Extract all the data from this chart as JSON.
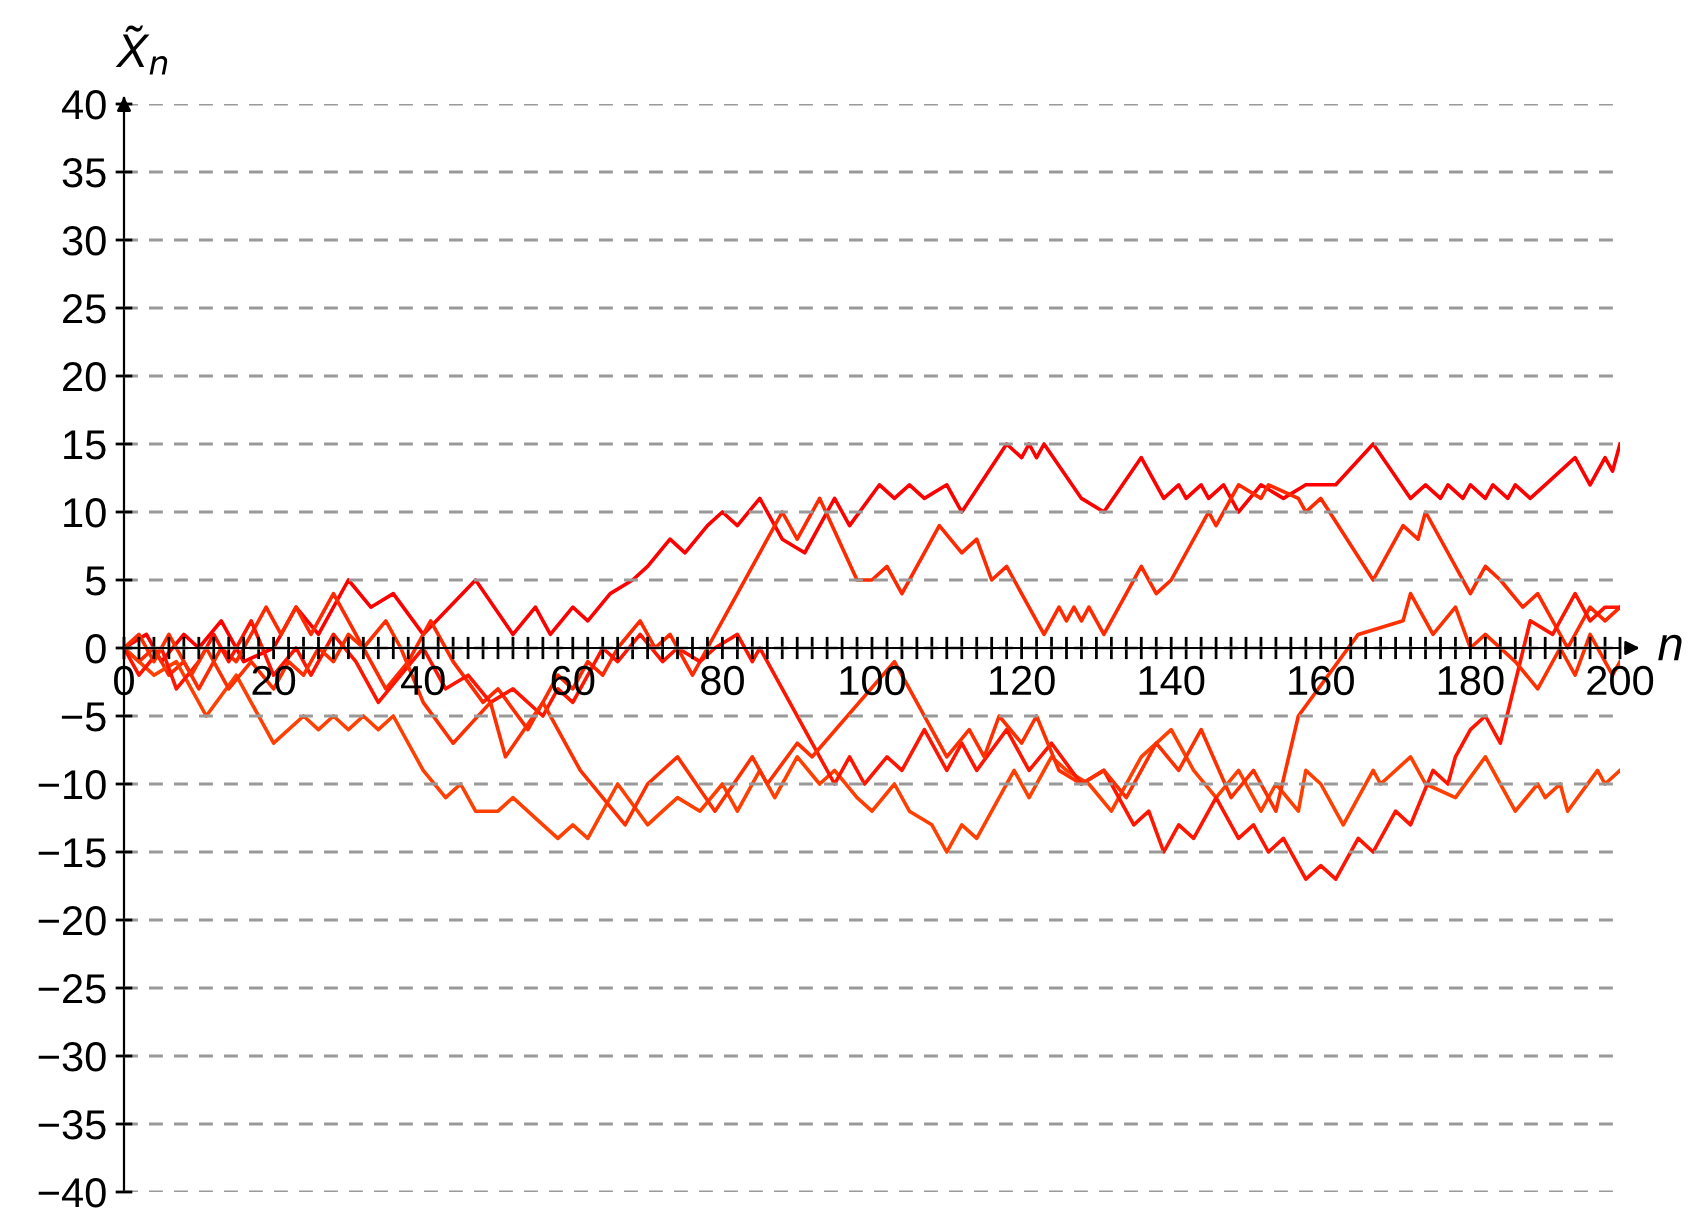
{
  "chart_data": {
    "type": "line",
    "xlabel": "n",
    "ylabel": "X̃$_{n}$",
    "xlim": [
      0,
      200
    ],
    "ylim": [
      -40,
      40
    ],
    "xticks": [
      0,
      {
        "value": 2,
        "label": null
      },
      {
        "value": 4,
        "label": null
      },
      {
        "value": 6,
        "label": null
      },
      {
        "value": 8,
        "label": null
      },
      {
        "value": 10,
        "label": null
      },
      {
        "value": 12,
        "label": null
      },
      {
        "value": 14,
        "label": null
      },
      {
        "value": 16,
        "label": null
      },
      {
        "value": 18,
        "label": null
      },
      20,
      {
        "value": 22,
        "label": null
      },
      {
        "value": 24,
        "label": null
      },
      {
        "value": 26,
        "label": null
      },
      {
        "value": 28,
        "label": null
      },
      {
        "value": 30,
        "label": null
      },
      {
        "value": 32,
        "label": null
      },
      {
        "value": 34,
        "label": null
      },
      {
        "value": 36,
        "label": null
      },
      {
        "value": 38,
        "label": null
      },
      40,
      {
        "value": 42,
        "label": null
      },
      {
        "value": 44,
        "label": null
      },
      {
        "value": 46,
        "label": null
      },
      {
        "value": 48,
        "label": null
      },
      {
        "value": 50,
        "label": null
      },
      {
        "value": 52,
        "label": null
      },
      {
        "value": 54,
        "label": null
      },
      {
        "value": 56,
        "label": null
      },
      {
        "value": 58,
        "label": null
      },
      60,
      {
        "value": 62,
        "label": null
      },
      {
        "value": 64,
        "label": null
      },
      {
        "value": 66,
        "label": null
      },
      {
        "value": 68,
        "label": null
      },
      {
        "value": 70,
        "label": null
      },
      {
        "value": 72,
        "label": null
      },
      {
        "value": 74,
        "label": null
      },
      {
        "value": 76,
        "label": null
      },
      {
        "value": 78,
        "label": null
      },
      80,
      {
        "value": 82,
        "label": null
      },
      {
        "value": 84,
        "label": null
      },
      {
        "value": 86,
        "label": null
      },
      {
        "value": 88,
        "label": null
      },
      {
        "value": 90,
        "label": null
      },
      {
        "value": 92,
        "label": null
      },
      {
        "value": 94,
        "label": null
      },
      {
        "value": 96,
        "label": null
      },
      {
        "value": 98,
        "label": null
      },
      100,
      {
        "value": 102,
        "label": null
      },
      {
        "value": 104,
        "label": null
      },
      {
        "value": 106,
        "label": null
      },
      {
        "value": 108,
        "label": null
      },
      {
        "value": 110,
        "label": null
      },
      {
        "value": 112,
        "label": null
      },
      {
        "value": 114,
        "label": null
      },
      {
        "value": 116,
        "label": null
      },
      {
        "value": 118,
        "label": null
      },
      120,
      {
        "value": 122,
        "label": null
      },
      {
        "value": 124,
        "label": null
      },
      {
        "value": 126,
        "label": null
      },
      {
        "value": 128,
        "label": null
      },
      {
        "value": 130,
        "label": null
      },
      {
        "value": 132,
        "label": null
      },
      {
        "value": 134,
        "label": null
      },
      {
        "value": 136,
        "label": null
      },
      {
        "value": 138,
        "label": null
      },
      140,
      {
        "value": 142,
        "label": null
      },
      {
        "value": 144,
        "label": null
      },
      {
        "value": 146,
        "label": null
      },
      {
        "value": 148,
        "label": null
      },
      {
        "value": 150,
        "label": null
      },
      {
        "value": 152,
        "label": null
      },
      {
        "value": 154,
        "label": null
      },
      {
        "value": 156,
        "label": null
      },
      {
        "value": 158,
        "label": null
      },
      160,
      {
        "value": 162,
        "label": null
      },
      {
        "value": 164,
        "label": null
      },
      {
        "value": 166,
        "label": null
      },
      {
        "value": 168,
        "label": null
      },
      {
        "value": 170,
        "label": null
      },
      {
        "value": 172,
        "label": null
      },
      {
        "value": 174,
        "label": null
      },
      {
        "value": 176,
        "label": null
      },
      {
        "value": 178,
        "label": null
      },
      180,
      {
        "value": 182,
        "label": null
      },
      {
        "value": 184,
        "label": null
      },
      {
        "value": 186,
        "label": null
      },
      {
        "value": 188,
        "label": null
      },
      {
        "value": 190,
        "label": null
      },
      {
        "value": 192,
        "label": null
      },
      {
        "value": 194,
        "label": null
      },
      {
        "value": 196,
        "label": null
      },
      {
        "value": 198,
        "label": null
      },
      200
    ],
    "yticks": [
      {
        "value": -40,
        "label": "−40"
      },
      {
        "value": -35,
        "label": "−35"
      },
      {
        "value": -30,
        "label": "−30"
      },
      {
        "value": -25,
        "label": "−25"
      },
      {
        "value": -20,
        "label": "−20"
      },
      {
        "value": -15,
        "label": "−15"
      },
      {
        "value": -10,
        "label": "−10"
      },
      {
        "value": -5,
        "label": "−5"
      },
      0,
      5,
      10,
      15,
      20,
      25,
      30,
      35,
      40
    ],
    "grid": "y",
    "marker": "none",
    "line_style": "solid",
    "series": [
      {
        "color": "#ff0000",
        "x": [
          0,
          3,
          5,
          8,
          10,
          13,
          16,
          20,
          23,
          26,
          30,
          33,
          36,
          40,
          47,
          52,
          55,
          57,
          60,
          62,
          65,
          68,
          70,
          73,
          75,
          78,
          80,
          82,
          85,
          88,
          91,
          95,
          97,
          101,
          103,
          105,
          107,
          110,
          112,
          118,
          120,
          121,
          122,
          123,
          128,
          131,
          136,
          139,
          141,
          142,
          144,
          145,
          147,
          149,
          152,
          155,
          158,
          162,
          167,
          172,
          174,
          176,
          177,
          179,
          180,
          182,
          183,
          185,
          186,
          188,
          190,
          194,
          196,
          198,
          199,
          200
        ],
        "values": [
          0,
          1,
          -1,
          1,
          0,
          2,
          -1,
          0,
          3,
          1,
          5,
          3,
          4,
          1,
          5,
          1,
          3,
          1,
          3,
          2,
          4,
          5,
          6,
          8,
          7,
          9,
          10,
          9,
          11,
          8,
          7,
          11,
          9,
          12,
          11,
          12,
          11,
          12,
          10,
          15,
          14,
          15,
          14,
          15,
          11,
          10,
          14,
          11,
          12,
          11,
          12,
          11,
          12,
          10,
          12,
          11,
          12,
          12,
          15,
          11,
          12,
          11,
          12,
          11,
          12,
          11,
          12,
          11,
          12,
          11,
          12,
          14,
          12,
          14,
          13,
          15
        ]
      },
      {
        "color": "#ff2a00",
        "x": [
          0,
          2,
          4,
          6,
          8,
          10,
          13,
          15,
          19,
          21,
          23,
          25,
          28,
          31,
          35,
          38,
          41,
          44,
          48,
          50,
          54,
          56,
          58,
          60,
          62,
          64,
          66,
          69,
          71,
          73,
          76,
          78,
          88,
          90,
          93,
          98,
          100,
          102,
          104,
          109,
          112,
          114,
          116,
          118,
          119,
          123,
          125,
          126,
          127,
          128,
          129,
          131,
          136,
          138,
          140,
          145,
          146,
          149,
          152,
          153,
          157,
          158,
          160,
          167,
          171,
          173,
          174,
          180,
          182,
          184,
          187,
          189,
          193,
          196,
          198,
          200
        ],
        "values": [
          0,
          -1,
          0,
          -2,
          -1,
          -3,
          0,
          -1,
          3,
          1,
          3,
          1,
          4,
          1,
          -3,
          -1,
          2,
          -1,
          -4,
          -3,
          -6,
          -4,
          -2,
          -3,
          -1,
          -2,
          0,
          2,
          0,
          1,
          -2,
          0,
          10,
          8,
          11,
          5,
          5,
          6,
          4,
          9,
          7,
          8,
          5,
          6,
          5,
          1,
          3,
          2,
          3,
          2,
          3,
          1,
          6,
          4,
          5,
          10,
          9,
          12,
          11,
          12,
          11,
          10,
          11,
          5,
          9,
          8,
          10,
          4,
          6,
          5,
          3,
          4,
          0,
          3,
          2,
          3
        ]
      },
      {
        "color": "#ff4000",
        "x": [
          0,
          4,
          7,
          11,
          15,
          20,
          24,
          26,
          28,
          30,
          32,
          34,
          36,
          40,
          43,
          45,
          47,
          50,
          52,
          56,
          58,
          60,
          62,
          66,
          70,
          72,
          74,
          77,
          80,
          82,
          85,
          87,
          90,
          93,
          95,
          98,
          100,
          103,
          105,
          108,
          110,
          112,
          114,
          119,
          121,
          124,
          126,
          129,
          132,
          136,
          140,
          143,
          146,
          149,
          152,
          154,
          157,
          158,
          160,
          163,
          167,
          168,
          172,
          174,
          178,
          182,
          186,
          189,
          190,
          192,
          193,
          197,
          198,
          200
        ],
        "values": [
          0,
          -2,
          -1,
          -5,
          -2,
          -7,
          -5,
          -6,
          -5,
          -6,
          -5,
          -6,
          -5,
          -9,
          -11,
          -10,
          -12,
          -12,
          -11,
          -13,
          -14,
          -13,
          -14,
          -10,
          -13,
          -12,
          -11,
          -12,
          -10,
          -12,
          -9,
          -11,
          -8,
          -10,
          -9,
          -11,
          -12,
          -10,
          -12,
          -13,
          -15,
          -13,
          -14,
          -9,
          -11,
          -8,
          -9,
          -10,
          -12,
          -8,
          -6,
          -9,
          -11,
          -9,
          -12,
          -10,
          -12,
          -9,
          -10,
          -13,
          -9,
          -10,
          -8,
          -10,
          -11,
          -8,
          -12,
          -10,
          -11,
          -10,
          -12,
          -9,
          -10,
          -9
        ]
      },
      {
        "color": "#ff1500",
        "x": [
          0,
          2,
          5,
          7,
          10,
          12,
          14,
          17,
          20,
          23,
          25,
          28,
          31,
          34,
          37,
          40,
          43,
          46,
          49,
          52,
          56,
          58,
          60,
          64,
          66,
          69,
          72,
          74,
          77,
          79,
          82,
          84,
          85,
          95,
          97,
          99,
          102,
          104,
          107,
          110,
          112,
          114,
          118,
          121,
          124,
          128,
          131,
          135,
          137,
          139,
          141,
          143,
          146,
          149,
          151,
          153,
          155,
          158,
          160,
          162,
          165,
          167,
          170,
          172,
          175,
          177,
          178,
          180,
          182,
          184,
          188,
          191,
          194,
          196,
          198,
          200
        ],
        "values": [
          0,
          -2,
          0,
          -3,
          -1,
          1,
          -1,
          2,
          -2,
          0,
          -2,
          1,
          -1,
          -4,
          -2,
          0,
          -3,
          -2,
          -4,
          -3,
          -5,
          -3,
          -4,
          0,
          -1,
          1,
          -1,
          0,
          -1,
          0,
          1,
          -1,
          0,
          -10,
          -8,
          -10,
          -8,
          -9,
          -6,
          -9,
          -7,
          -9,
          -6,
          -9,
          -7,
          -10,
          -9,
          -13,
          -12,
          -15,
          -13,
          -14,
          -11,
          -14,
          -13,
          -15,
          -14,
          -17,
          -16,
          -17,
          -14,
          -15,
          -12,
          -13,
          -9,
          -10,
          -8,
          -6,
          -5,
          -7,
          2,
          1,
          4,
          2,
          3,
          3
        ]
      },
      {
        "color": "#ff3000",
        "x": [
          0,
          2,
          4,
          6,
          9,
          11,
          14,
          17,
          20,
          22,
          24,
          26,
          28,
          30,
          32,
          35,
          37,
          40,
          44,
          49,
          51,
          56,
          61,
          67,
          70,
          74,
          79,
          84,
          86,
          90,
          92,
          103,
          110,
          113,
          115,
          117,
          120,
          122,
          125,
          128,
          131,
          134,
          138,
          141,
          144,
          148,
          151,
          154,
          157,
          165,
          171,
          172,
          175,
          178,
          180,
          182,
          186,
          189,
          192,
          194,
          196,
          199,
          200
        ],
        "values": [
          0,
          1,
          -1,
          1,
          -2,
          0,
          -3,
          -1,
          -3,
          -1,
          -2,
          0,
          -1,
          1,
          0,
          2,
          0,
          -4,
          -7,
          -4,
          -8,
          -4,
          -9,
          -13,
          -10,
          -8,
          -12,
          -8,
          -10,
          -7,
          -8,
          -1,
          -8,
          -6,
          -8,
          -5,
          -7,
          -5,
          -9,
          -10,
          -9,
          -11,
          -7,
          -9,
          -6,
          -11,
          -9,
          -12,
          -5,
          1,
          2,
          4,
          1,
          3,
          0,
          1,
          -1,
          -3,
          0,
          -2,
          1,
          -2,
          -1
        ]
      }
    ]
  }
}
